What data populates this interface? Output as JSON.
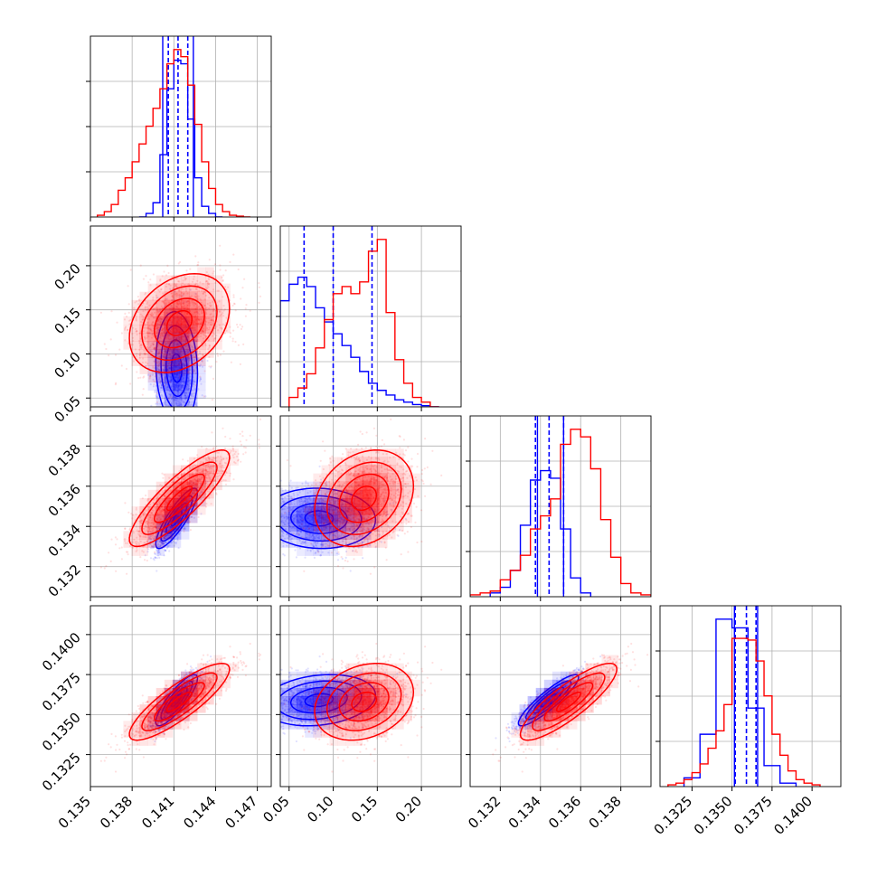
{
  "chart_data": {
    "type": "scatter",
    "description_free": true,
    "colors": {
      "a": "#0000ff",
      "b": "#ff0000",
      "grid": "#b0b0b0"
    },
    "params": [
      {
        "lim": [
          0.135,
          0.148
        ],
        "ticks": [
          0.135,
          0.138,
          0.141,
          0.144,
          0.147
        ],
        "labels": [
          "0.135",
          "0.138",
          "0.141",
          "0.144",
          "0.147"
        ]
      },
      {
        "lim": [
          0.04,
          0.245
        ],
        "ticks": [
          0.05,
          0.1,
          0.15,
          0.2
        ],
        "labels": [
          "0.05",
          "0.10",
          "0.15",
          "0.20"
        ]
      },
      {
        "lim": [
          0.1305,
          0.1395
        ],
        "ticks": [
          0.132,
          0.134,
          0.136,
          0.138
        ],
        "labels": [
          "0.132",
          "0.134",
          "0.136",
          "0.138"
        ]
      },
      {
        "lim": [
          0.1305,
          0.1418
        ],
        "ticks": [
          0.1325,
          0.135,
          0.1375,
          0.14
        ],
        "labels": [
          "0.1325",
          "0.1350",
          "0.1375",
          "0.1400"
        ]
      }
    ],
    "series": [
      {
        "key": "a",
        "hist": [
          {
            "edges": [
              0.1385,
              0.139,
              0.1395,
              0.14,
              0.1405,
              0.141,
              0.1415,
              0.142,
              0.1425,
              0.143,
              0.1435,
              0.144,
              0.1445
            ],
            "counts": [
              0,
              0.02,
              0.08,
              0.35,
              0.72,
              0.88,
              0.86,
              0.55,
              0.22,
              0.06,
              0.02,
              0
            ]
          },
          {
            "edges": [
              0.04,
              0.05,
              0.06,
              0.07,
              0.08,
              0.09,
              0.1,
              0.11,
              0.12,
              0.13,
              0.14,
              0.15,
              0.16,
              0.17,
              0.18,
              0.19,
              0.2,
              0.21,
              0.22
            ],
            "counts": [
              0.45,
              0.52,
              0.55,
              0.51,
              0.42,
              0.36,
              0.31,
              0.26,
              0.21,
              0.15,
              0.1,
              0.07,
              0.05,
              0.03,
              0.02,
              0.01,
              0.005,
              0
            ]
          },
          {
            "edges": [
              0.1315,
              0.132,
              0.1325,
              0.133,
              0.1335,
              0.134,
              0.1345,
              0.135,
              0.1355,
              0.136,
              0.1365
            ],
            "counts": [
              0.02,
              0.05,
              0.14,
              0.38,
              0.62,
              0.67,
              0.63,
              0.36,
              0.1,
              0.02
            ]
          },
          {
            "edges": [
              0.132,
              0.133,
              0.134,
              0.135,
              0.136,
              0.137,
              0.138,
              0.139
            ],
            "counts": [
              0.05,
              0.3,
              0.96,
              0.91,
              0.45,
              0.12,
              0.02
            ]
          }
        ],
        "quantiles": [
          [
            0.1406,
            0.1413,
            0.142
          ],
          [
            0.067,
            0.1,
            0.144
          ],
          [
            0.13375,
            0.13443,
            0.13515
          ],
          [
            0.1352,
            0.1359,
            0.1365
          ]
        ],
        "edge_lines": [
          [
            0.1402,
            0.1424
          ],
          [],
          [
            0.13385,
            0.13515
          ],
          [
            0.13515,
            0.1366
          ]
        ],
        "gauss": {
          "mean": [
            0.1412,
            0.084,
            0.1344,
            0.1359
          ],
          "sd": [
            0.00075,
            0.032,
            0.00075,
            0.0008
          ],
          "corr": [
            [
              1,
              -0.1,
              0.85,
              0.85
            ],
            [
              -0.1,
              1,
              -0.05,
              0.2
            ],
            [
              0.85,
              -0.05,
              1,
              0.9
            ],
            [
              0.85,
              0.2,
              0.9,
              1
            ]
          ]
        }
      },
      {
        "key": "b",
        "hist": [
          {
            "edges": [
              0.1355,
              0.136,
              0.1365,
              0.137,
              0.1375,
              0.138,
              0.1385,
              0.139,
              0.1395,
              0.14,
              0.1405,
              0.141,
              0.1415,
              0.142,
              0.1425,
              0.143,
              0.1435,
              0.144,
              0.1445,
              0.145,
              0.1455,
              0.146,
              0.1465
            ],
            "counts": [
              0.01,
              0.03,
              0.07,
              0.15,
              0.22,
              0.31,
              0.41,
              0.51,
              0.61,
              0.72,
              0.86,
              0.94,
              0.9,
              0.74,
              0.52,
              0.31,
              0.16,
              0.07,
              0.03,
              0.01,
              0.005,
              0
            ]
          },
          {
            "edges": [
              0.05,
              0.06,
              0.07,
              0.08,
              0.09,
              0.1,
              0.11,
              0.12,
              0.13,
              0.14,
              0.15,
              0.16,
              0.17,
              0.18,
              0.19,
              0.2,
              0.21,
              0.22
            ],
            "counts": [
              0.04,
              0.08,
              0.14,
              0.25,
              0.37,
              0.48,
              0.51,
              0.48,
              0.53,
              0.66,
              0.71,
              0.4,
              0.2,
              0.1,
              0.04,
              0.02,
              0
            ]
          },
          {
            "edges": [
              0.1305,
              0.131,
              0.1315,
              0.132,
              0.1325,
              0.133,
              0.1335,
              0.134,
              0.1345,
              0.135,
              0.1355,
              0.136,
              0.1365,
              0.137,
              0.1375,
              0.138,
              0.1385,
              0.139,
              0.1395
            ],
            "counts": [
              0.01,
              0.02,
              0.03,
              0.09,
              0.14,
              0.22,
              0.36,
              0.43,
              0.52,
              0.81,
              0.89,
              0.85,
              0.68,
              0.41,
              0.21,
              0.07,
              0.02,
              0.01
            ]
          },
          {
            "edges": [
              0.131,
              0.1315,
              0.132,
              0.1325,
              0.133,
              0.1335,
              0.134,
              0.1345,
              0.135,
              0.1355,
              0.136,
              0.1365,
              0.137,
              0.1375,
              0.138,
              0.1385,
              0.139,
              0.1395,
              0.14,
              0.1405
            ],
            "counts": [
              0.01,
              0.02,
              0.04,
              0.08,
              0.13,
              0.22,
              0.32,
              0.47,
              0.85,
              0.85,
              0.84,
              0.72,
              0.52,
              0.3,
              0.18,
              0.09,
              0.04,
              0.02,
              0.01
            ]
          }
        ],
        "gauss": {
          "mean": [
            0.1414,
            0.135,
            0.1354,
            0.1358
          ],
          "sd": [
            0.0018,
            0.028,
            0.0012,
            0.0012
          ],
          "corr": [
            [
              1,
              0.3,
              0.85,
              0.85
            ],
            [
              0.3,
              1,
              0.25,
              0.25
            ],
            [
              0.85,
              0.25,
              1,
              0.85
            ],
            [
              0.85,
              0.25,
              0.85,
              1
            ]
          ]
        }
      }
    ]
  }
}
